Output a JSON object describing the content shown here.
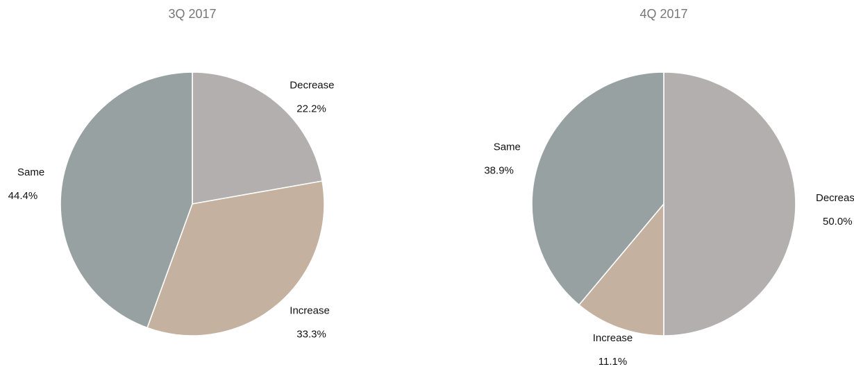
{
  "chart_data": [
    {
      "type": "pie",
      "title": "3Q 2017",
      "start_angle_deg": 0,
      "direction": "clockwise",
      "slices": [
        {
          "label": "Decrease",
          "value": 22.2,
          "value_label": "22.2%",
          "color": "#b3afae"
        },
        {
          "label": "Increase",
          "value": 33.3,
          "value_label": "33.3%",
          "color": "#c5b1a0"
        },
        {
          "label": "Same",
          "value": 44.4,
          "value_label": "44.4%",
          "color": "#98a1a1"
        }
      ]
    },
    {
      "type": "pie",
      "title": "4Q 2017",
      "start_angle_deg": 0,
      "direction": "clockwise",
      "slices": [
        {
          "label": "Decrease",
          "value": 50.0,
          "value_label": "50.0%",
          "color": "#b3afae"
        },
        {
          "label": "Increase",
          "value": 11.1,
          "value_label": "11.1%",
          "color": "#c5b1a0"
        },
        {
          "label": "Same",
          "value": 38.9,
          "value_label": "38.9%",
          "color": "#98a1a1"
        }
      ]
    }
  ]
}
